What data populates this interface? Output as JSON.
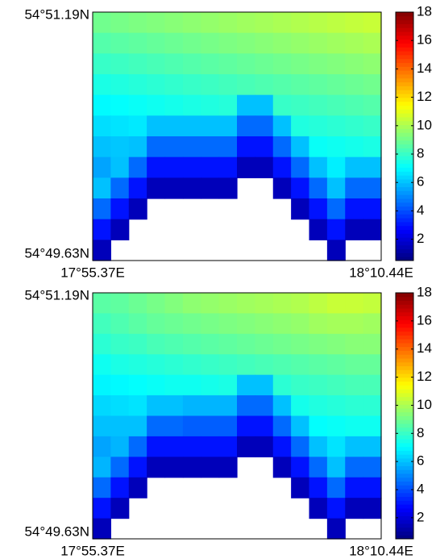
{
  "chart_data": [
    {
      "type": "heatmap",
      "colormap": "jet",
      "clim": [
        0.5,
        18
      ],
      "cticks": [
        2,
        4,
        6,
        8,
        10,
        12,
        14,
        16,
        18
      ],
      "xlim": [
        17.922833,
        18.174
      ],
      "xticks": [
        {
          "value": 17.922833,
          "label": "17°55.37E"
        },
        {
          "value": 18.174,
          "label": "18°10.44E"
        }
      ],
      "ylim": [
        54.827167,
        54.853167
      ],
      "yticks": [
        {
          "value": 54.853167,
          "label": "54°51.19N"
        },
        {
          "value": 54.827167,
          "label": "54°49.63N"
        }
      ],
      "z": [
        [
          9.0,
          9.1,
          9.2,
          9.3,
          9.4,
          9.5,
          9.6,
          9.7,
          9.8,
          9.9,
          10,
          10.1,
          10.2,
          10.3,
          10.4,
          10.5
        ],
        [
          8.5,
          8.6,
          8.7,
          8.8,
          8.9,
          9,
          9.1,
          9.2,
          9.3,
          9.4,
          9.5,
          9.6,
          9.7,
          9.8,
          9.9,
          10
        ],
        [
          8,
          8.1,
          8.2,
          8.3,
          8.4,
          8.5,
          8.6,
          8.7,
          8.8,
          8.9,
          9,
          9.1,
          9.2,
          9.3,
          9.4,
          9.5
        ],
        [
          7.5,
          7.6,
          7.7,
          7.8,
          7.9,
          8,
          8.1,
          8.2,
          8.3,
          8.4,
          8.5,
          8.6,
          8.7,
          8.8,
          8.9,
          9
        ],
        [
          7,
          7.1,
          7.2,
          7.3,
          7.4,
          7.5,
          7.6,
          7.7,
          6,
          6,
          8,
          8.1,
          8.2,
          8.3,
          8.4,
          8.5
        ],
        [
          6.5,
          6.6,
          6.7,
          6,
          6,
          6,
          6,
          6,
          4.5,
          4.5,
          6,
          7.6,
          7.7,
          7.8,
          7.9,
          8
        ],
        [
          6,
          6.1,
          6,
          4.5,
          4.5,
          4.5,
          4.5,
          4.5,
          3,
          3,
          4.5,
          6,
          7.2,
          7.3,
          7.4,
          7.5
        ],
        [
          5.5,
          6,
          4.5,
          3,
          3,
          3,
          3,
          3,
          1.5,
          1.5,
          3,
          4.5,
          6,
          6.8,
          6,
          6
        ],
        [
          6,
          4.5,
          3,
          1.5,
          1.5,
          1.5,
          1.5,
          1.5,
          null,
          null,
          1.5,
          3,
          4.5,
          6,
          4.5,
          4.5
        ],
        [
          4.5,
          3,
          1.5,
          null,
          null,
          null,
          null,
          null,
          null,
          null,
          null,
          1.5,
          3,
          4.5,
          3,
          3
        ],
        [
          3,
          1.5,
          null,
          null,
          null,
          null,
          null,
          null,
          null,
          null,
          null,
          null,
          1.5,
          3,
          1.5,
          1.5
        ],
        [
          1.5,
          null,
          null,
          null,
          null,
          null,
          null,
          null,
          null,
          null,
          null,
          null,
          null,
          1.5,
          null,
          null
        ]
      ]
    },
    {
      "type": "heatmap",
      "colormap": "jet",
      "clim": [
        0.5,
        18
      ],
      "cticks": [
        2,
        4,
        6,
        8,
        10,
        12,
        14,
        16,
        18
      ],
      "xlim": [
        17.922833,
        18.174
      ],
      "xticks": [
        {
          "value": 17.922833,
          "label": "17°55.37E"
        },
        {
          "value": 18.174,
          "label": "18°10.44E"
        }
      ],
      "ylim": [
        54.827167,
        54.853167
      ],
      "yticks": [
        {
          "value": 54.853167,
          "label": "54°51.19N"
        },
        {
          "value": 54.827167,
          "label": "54°49.63N"
        }
      ],
      "z": [
        [
          8.6,
          8.7,
          8.9,
          9.1,
          9.3,
          9.5,
          9.6,
          9.7,
          9.8,
          9.9,
          10,
          10.1,
          10.3,
          10.5,
          10.5,
          10.4
        ],
        [
          8.2,
          8.4,
          8.6,
          8.8,
          8.9,
          9,
          9.1,
          9.2,
          9.3,
          9.4,
          9.5,
          9.6,
          9.8,
          9.9,
          9.9,
          9.8
        ],
        [
          7.8,
          8,
          8.1,
          8.3,
          8.4,
          8.5,
          8.6,
          8.7,
          8.8,
          8.9,
          9,
          9.1,
          9.2,
          9.3,
          9.4,
          9.4
        ],
        [
          7.3,
          7.5,
          7.6,
          7.7,
          7.8,
          7.9,
          8,
          8.1,
          8.2,
          8.3,
          8.4,
          8.5,
          8.6,
          8.7,
          8.8,
          8.8
        ],
        [
          6.9,
          7,
          7.1,
          7.2,
          7.3,
          7.3,
          7.4,
          7.5,
          6,
          6,
          7.8,
          8,
          8.1,
          8.2,
          8.3,
          8.3
        ],
        [
          6.4,
          6.5,
          6.6,
          6,
          6,
          5.8,
          5.8,
          5.8,
          4.5,
          4.5,
          6,
          7.4,
          7.6,
          7.7,
          7.8,
          7.8
        ],
        [
          6,
          6,
          6,
          4.5,
          4.5,
          4.3,
          4.3,
          4.3,
          3,
          3,
          4.5,
          6,
          7.1,
          7.2,
          7.3,
          7.3
        ],
        [
          5.5,
          5.8,
          4.5,
          3,
          3,
          3,
          3,
          3,
          1.5,
          1.5,
          3,
          4.5,
          6,
          6.6,
          6,
          6
        ],
        [
          5.8,
          4.5,
          3,
          1.5,
          1.5,
          1.5,
          1.5,
          1.5,
          null,
          null,
          1.5,
          3,
          4.5,
          6,
          4.5,
          4.5
        ],
        [
          4.5,
          3,
          1.5,
          null,
          null,
          null,
          null,
          null,
          null,
          null,
          null,
          1.5,
          3,
          4.5,
          3,
          3
        ],
        [
          3,
          1.5,
          null,
          null,
          null,
          null,
          null,
          null,
          null,
          null,
          null,
          null,
          1.5,
          3,
          1.5,
          1.5
        ],
        [
          1.5,
          null,
          null,
          null,
          null,
          null,
          null,
          null,
          null,
          null,
          null,
          null,
          null,
          1.5,
          null,
          null
        ]
      ]
    }
  ]
}
